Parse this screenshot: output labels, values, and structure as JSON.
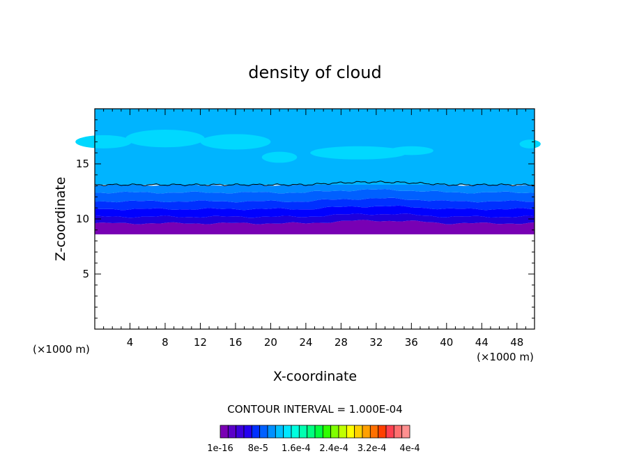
{
  "chart_data": {
    "type": "heatmap",
    "title": "density of cloud",
    "xlabel": "X-coordinate",
    "ylabel": "Z-coordinate",
    "x_unit_left": "(×1000 m)",
    "x_unit_right": "(×1000 m)",
    "xlim": [
      0,
      50
    ],
    "ylim": [
      0,
      20
    ],
    "x_ticks": [
      "4",
      "8",
      "12",
      "16",
      "20",
      "24",
      "28",
      "32",
      "36",
      "40",
      "44",
      "48"
    ],
    "y_ticks": [
      "5",
      "10",
      "15"
    ],
    "y_tick_values": [
      5,
      10,
      15
    ],
    "contour_interval_text": "CONTOUR INTERVAL = 1.000E-04",
    "colorbar_labels": [
      "1e-16",
      "8e-5",
      "1.6e-4",
      "2.4e-4",
      "3.2e-4",
      "4e-4"
    ],
    "colorbar_colors": [
      "#7a00b4",
      "#5a00c8",
      "#3c00dc",
      "#2400f0",
      "#0030ff",
      "#0060ff",
      "#0090ff",
      "#00c0ff",
      "#00e6ff",
      "#00ffe0",
      "#00ffb0",
      "#00ff80",
      "#00ff40",
      "#30ff00",
      "#80ff00",
      "#c0ff00",
      "#ffff00",
      "#ffd000",
      "#ffa000",
      "#ff7000",
      "#ff4000",
      "#ff4050",
      "#ff7070",
      "#ff9090"
    ],
    "cloud_layers": [
      {
        "z_bottom": 8.6,
        "z_top": 9.6,
        "color": "#7800b4"
      },
      {
        "z_bottom": 9.6,
        "z_top": 10.2,
        "color": "#1e00dc"
      },
      {
        "z_bottom": 10.2,
        "z_top": 10.9,
        "color": "#0000ff"
      },
      {
        "z_bottom": 10.9,
        "z_top": 11.6,
        "color": "#0030ff"
      },
      {
        "z_bottom": 11.6,
        "z_top": 12.4,
        "color": "#0060ff"
      },
      {
        "z_bottom": 12.4,
        "z_top": 13.1,
        "color": "#0088ff"
      },
      {
        "z_bottom": 13.1,
        "z_top": 20.0,
        "color": "#00b4ff"
      }
    ],
    "contour_line_z": 13.1,
    "upper_patch_color": "#00d8ff"
  }
}
